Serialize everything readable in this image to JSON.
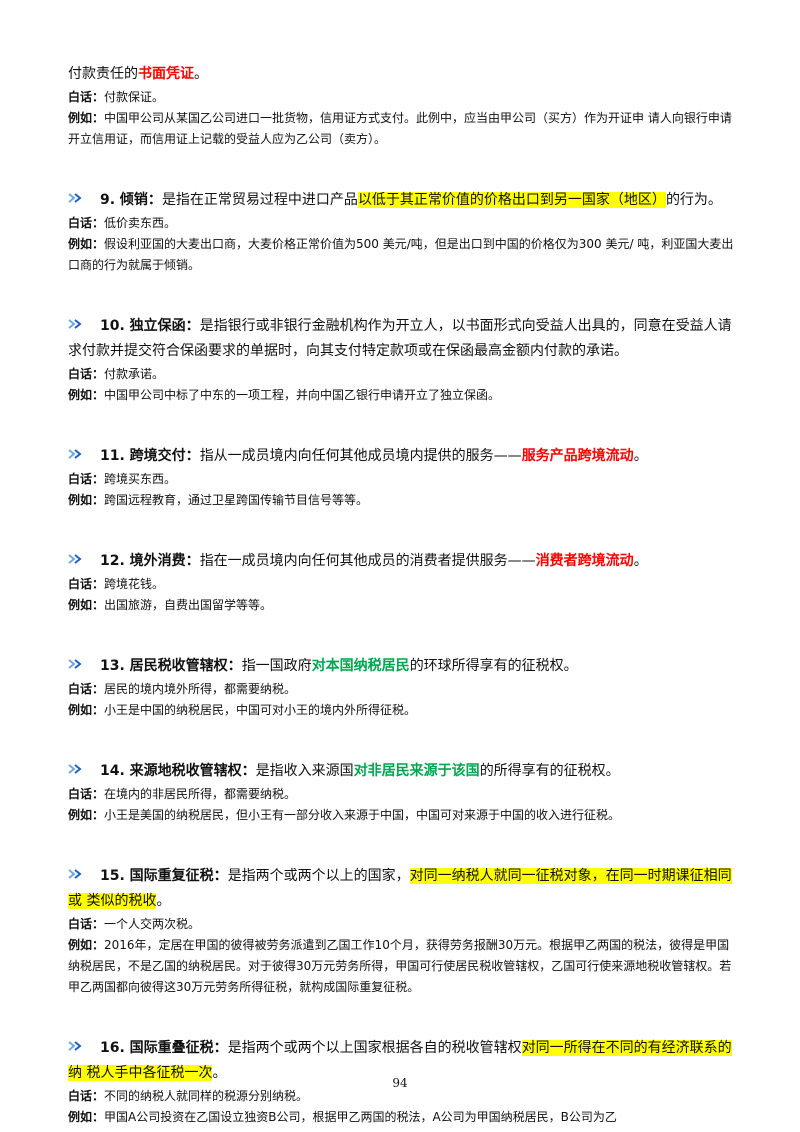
{
  "intro": {
    "before": "付款责任的",
    "emphasis": "书面凭证",
    "after": "。",
    "plain_label": "白话：",
    "plain": "付款保证。",
    "example_label": "例如：",
    "example": "中国甲公司从某国乙公司进口一批货物，信用证方式支付。此例中，应当由甲公司（买方）作为开证申 请人向银行申请开立信用证，而信用证上记载的受益人应为乙公司（卖方）。"
  },
  "entries": [
    {
      "heading": "9. 倾销：",
      "before": "是指在正常贸易过程中进口产品",
      "emphasis": "以低于其正常价值的价格出口到另一国家（地区）",
      "after": "的行为。",
      "plain_label": "白话：",
      "plain": "低价卖东西。",
      "example_label": "例如：",
      "example": "假设利亚国的大麦出口商，大麦价格正常价值为500 美元/吨，但是出口到中国的价格仅为300 美元/ 吨，利亚国大麦出口商的行为就属于倾销。"
    },
    {
      "heading": "10. 独立保函：",
      "before": "是指银行或非银行金融机构作为开立人，以书面形式向受益人出具的，同意在受益人请求付款并提交符合保函要求的单据时，向其支付特定款项或在保函最高金额内付款的承诺。",
      "plain_label": "白话：",
      "plain": "付款承诺。",
      "example_label": "例如：",
      "example": "中国甲公司中标了中东的一项工程，并向中国乙银行申请开立了独立保函。"
    },
    {
      "heading": "11. 跨境交付：",
      "before": "指从一成员境内向任何其他成员境内提供的服务——",
      "emphasis": "服务产品跨境流动",
      "after": "。",
      "plain_label": "白话：",
      "plain": "跨境买东西。",
      "example_label": "例如：",
      "example": "跨国远程教育，通过卫星跨国传输节目信号等等。"
    },
    {
      "heading": "12. 境外消费：",
      "before": "指在一成员境内向任何其他成员的消费者提供服务——",
      "emphasis": "消费者跨境流动",
      "after": "。",
      "plain_label": "白话：",
      "plain": "跨境花钱。",
      "example_label": "例如：",
      "example": "出国旅游，自费出国留学等等。"
    },
    {
      "heading": "13. 居民税收管辖权：",
      "before": "指一国政府",
      "emphasis": "对本国纳税居民",
      "after": "的环球所得享有的征税权。",
      "plain_label": "白话：",
      "plain": "居民的境内境外所得，都需要纳税。",
      "example_label": "例如：",
      "example": "小王是中国的纳税居民，中国可对小王的境内外所得征税。"
    },
    {
      "heading": "14. 来源地税收管辖权：",
      "before": "是指收入来源国",
      "emphasis": "对非居民来源于该国",
      "after": "的所得享有的征税权。",
      "plain_label": "白话：",
      "plain": "在境内的非居民所得，都需要纳税。",
      "example_label": "例如：",
      "example": "小王是美国的纳税居民，但小王有一部分收入来源于中国，中国可对来源于中国的收入进行征税。"
    },
    {
      "heading": "15. 国际重复征税：",
      "before": "是指两个或两个以上的国家，",
      "emphasis": "对同一纳税人就同一征税对象，在同一时期课征相同或 类似的税收",
      "after": "。",
      "plain_label": "白话：",
      "plain": "一个人交两次税。",
      "example_label": "例如：",
      "example": "2016年，定居在甲国的彼得被劳务派遣到乙国工作10个月，获得劳务报酬30万元。根据甲乙两国的税法，彼得是甲国纳税居民，不是乙国的纳税居民。对于彼得30万元劳务所得，甲国可行使居民税收管辖权，乙国可行使来源地税收管辖权。若甲乙两国都向彼得这30万元劳务所得征税，就构成国际重复征税。"
    },
    {
      "heading": "16. 国际重叠征税：",
      "before": "是指两个或两个以上国家根据各自的税收管辖权",
      "emphasis": "对同一所得在不同的有经济联系的纳 税人手中各征税一次",
      "after": "。",
      "plain_label": "白话：",
      "plain": "不同的纳税人就同样的税源分别纳税。",
      "example_label": "例如：",
      "example": "甲国A公司投资在乙国设立独资B公司，根据甲乙两国的税法，A公司为甲国纳税居民，B公司为乙"
    }
  ],
  "page_number": "94"
}
